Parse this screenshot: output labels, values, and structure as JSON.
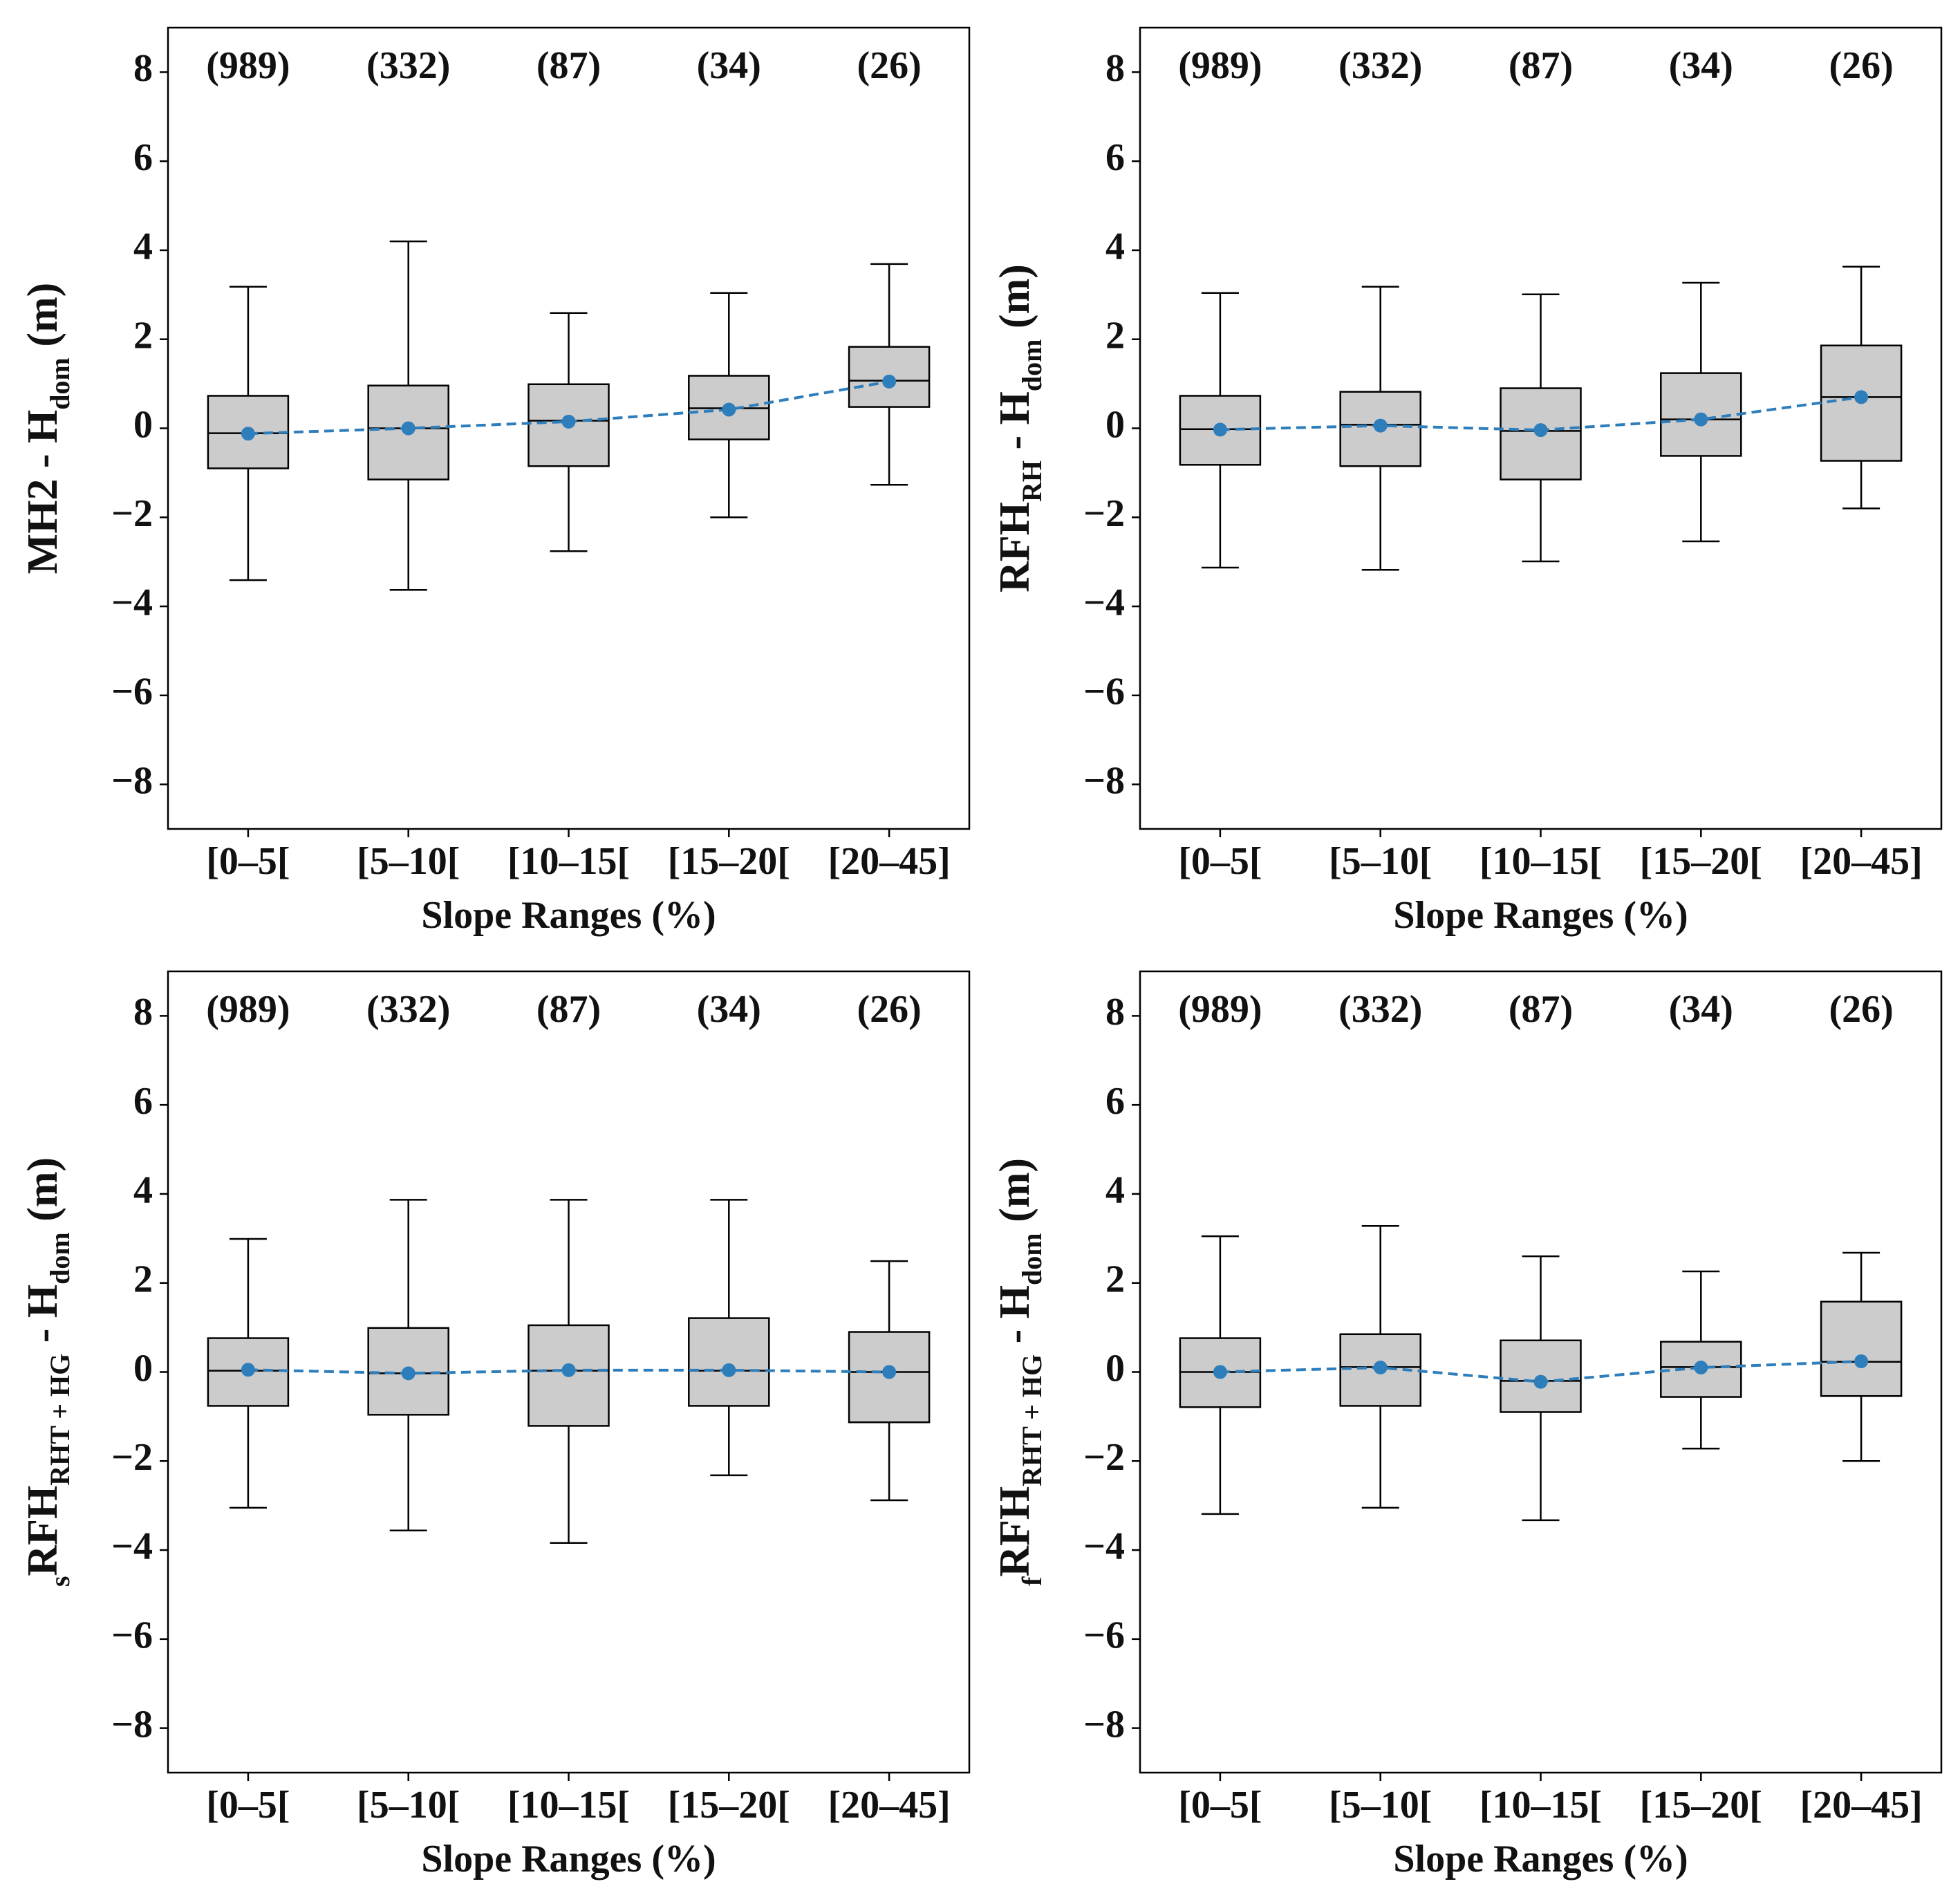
{
  "chart_data": [
    {
      "type": "box",
      "ylabel": [
        {
          "text": "MH2 - H"
        },
        {
          "text": "dom",
          "sub": true
        },
        {
          "text": " (m)"
        }
      ],
      "xlabel": "Slope Ranges (%)",
      "categories": [
        "[0–5[",
        "[5–10[",
        "[10–15[",
        "[15–20[",
        "[20–45]"
      ],
      "counts": [
        "(989)",
        "(332)",
        "(87)",
        "(34)",
        "(26)"
      ],
      "ylim": [
        -9,
        9
      ],
      "yticks": [
        {
          "value": -8,
          "label": "−8"
        },
        {
          "value": -6,
          "label": "−6"
        },
        {
          "value": -4,
          "label": "−4"
        },
        {
          "value": -2,
          "label": "−2"
        },
        0,
        2,
        4,
        6,
        8
      ],
      "box_color": "#cccccc",
      "mean_color": "#2e7ebc",
      "boxes": [
        {
          "whislo": -3.41,
          "q1": -0.9,
          "med": -0.11,
          "q3": 0.73,
          "whishi": 3.18,
          "mean": -0.12
        },
        {
          "whislo": -3.63,
          "q1": -1.15,
          "med": 0,
          "q3": 0.96,
          "whishi": 4.2,
          "mean": 0
        },
        {
          "whislo": -2.76,
          "q1": -0.85,
          "med": 0.17,
          "q3": 0.99,
          "whishi": 2.59,
          "mean": 0.15
        },
        {
          "whislo": -2.0,
          "q1": -0.25,
          "med": 0.45,
          "q3": 1.18,
          "whishi": 3.04,
          "mean": 0.42
        },
        {
          "whislo": -1.27,
          "q1": 0.48,
          "med": 1.07,
          "q3": 1.83,
          "whishi": 3.69,
          "mean": 1.05
        }
      ]
    },
    {
      "type": "box",
      "ylabel": [
        {
          "text": "RFH"
        },
        {
          "text": "RH",
          "sub": true
        },
        {
          "text": " - H"
        },
        {
          "text": "dom",
          "sub": true
        },
        {
          "text": " (m)"
        }
      ],
      "xlabel": "Slope Ranges (%)",
      "categories": [
        "[0–5[",
        "[5–10[",
        "[10–15[",
        "[15–20[",
        "[20–45]"
      ],
      "counts": [
        "(989)",
        "(332)",
        "(87)",
        "(34)",
        "(26)"
      ],
      "ylim": [
        -9,
        9
      ],
      "yticks": [
        {
          "value": -8,
          "label": "−8"
        },
        {
          "value": -6,
          "label": "−6"
        },
        {
          "value": -4,
          "label": "−4"
        },
        {
          "value": -2,
          "label": "−2"
        },
        0,
        2,
        4,
        6,
        8
      ],
      "box_color": "#cccccc",
      "mean_color": "#2e7ebc",
      "boxes": [
        {
          "whislo": -3.13,
          "q1": -0.82,
          "med": -0.02,
          "q3": 0.73,
          "whishi": 3.04,
          "mean": -0.03
        },
        {
          "whislo": -3.18,
          "q1": -0.85,
          "med": 0.08,
          "q3": 0.82,
          "whishi": 3.18,
          "mean": 0.06
        },
        {
          "whislo": -2.99,
          "q1": -1.15,
          "med": -0.06,
          "q3": 0.9,
          "whishi": 3.01,
          "mean": -0.04
        },
        {
          "whislo": -2.54,
          "q1": -0.62,
          "med": 0.2,
          "q3": 1.24,
          "whishi": 3.27,
          "mean": 0.2
        },
        {
          "whislo": -1.8,
          "q1": -0.73,
          "med": 0.7,
          "q3": 1.86,
          "whishi": 3.63,
          "mean": 0.7
        }
      ]
    },
    {
      "type": "box",
      "ylabel": [
        {
          "text": "s",
          "sub": true
        },
        {
          "text": "RFH"
        },
        {
          "text": "RHT + HG",
          "sub": true
        },
        {
          "text": " - H"
        },
        {
          "text": "dom",
          "sub": true
        },
        {
          "text": " (m)"
        }
      ],
      "xlabel": "Slope Ranges (%)",
      "categories": [
        "[0–5[",
        "[5–10[",
        "[10–15[",
        "[15–20[",
        "[20–45]"
      ],
      "counts": [
        "(989)",
        "(332)",
        "(87)",
        "(34)",
        "(26)"
      ],
      "ylim": [
        -9,
        9
      ],
      "yticks": [
        {
          "value": -8,
          "label": "−8"
        },
        {
          "value": -6,
          "label": "−6"
        },
        {
          "value": -4,
          "label": "−4"
        },
        {
          "value": -2,
          "label": "−2"
        },
        0,
        2,
        4,
        6,
        8
      ],
      "box_color": "#cccccc",
      "mean_color": "#2e7ebc",
      "boxes": [
        {
          "whislo": -3.05,
          "q1": -0.76,
          "med": 0.03,
          "q3": 0.76,
          "whishi": 2.99,
          "mean": 0.05
        },
        {
          "whislo": -3.56,
          "q1": -0.96,
          "med": -0.03,
          "q3": 0.99,
          "whishi": 3.87,
          "mean": -0.03
        },
        {
          "whislo": -3.84,
          "q1": -1.21,
          "med": 0.03,
          "q3": 1.05,
          "whishi": 3.87,
          "mean": 0.04
        },
        {
          "whislo": -2.32,
          "q1": -0.76,
          "med": 0.03,
          "q3": 1.21,
          "whishi": 3.87,
          "mean": 0.04
        },
        {
          "whislo": -2.88,
          "q1": -1.13,
          "med": 0,
          "q3": 0.9,
          "whishi": 2.49,
          "mean": 0
        }
      ]
    },
    {
      "type": "box",
      "ylabel": [
        {
          "text": "f",
          "sub": true
        },
        {
          "text": "RFH"
        },
        {
          "text": "RHT + HG",
          "sub": true
        },
        {
          "text": " - H"
        },
        {
          "text": "dom",
          "sub": true
        },
        {
          "text": " (m)"
        }
      ],
      "xlabel": "Slope Ranges (%)",
      "categories": [
        "[0–5[",
        "[5–10[",
        "[10–15[",
        "[15–20[",
        "[20–45]"
      ],
      "counts": [
        "(989)",
        "(332)",
        "(87)",
        "(34)",
        "(26)"
      ],
      "ylim": [
        -9,
        9
      ],
      "yticks": [
        {
          "value": -8,
          "label": "−8"
        },
        {
          "value": -6,
          "label": "−6"
        },
        {
          "value": -4,
          "label": "−4"
        },
        {
          "value": -2,
          "label": "−2"
        },
        0,
        2,
        4,
        6,
        8
      ],
      "box_color": "#cccccc",
      "mean_color": "#2e7ebc",
      "boxes": [
        {
          "whislo": -3.19,
          "q1": -0.79,
          "med": 0,
          "q3": 0.76,
          "whishi": 3.05,
          "mean": 0
        },
        {
          "whislo": -3.05,
          "q1": -0.76,
          "med": 0.11,
          "q3": 0.85,
          "whishi": 3.28,
          "mean": 0.1
        },
        {
          "whislo": -3.33,
          "q1": -0.9,
          "med": -0.2,
          "q3": 0.71,
          "whishi": 2.6,
          "mean": -0.22
        },
        {
          "whislo": -1.72,
          "q1": -0.56,
          "med": 0.11,
          "q3": 0.68,
          "whishi": 2.26,
          "mean": 0.1
        },
        {
          "whislo": -2.0,
          "q1": -0.54,
          "med": 0.23,
          "q3": 1.58,
          "whishi": 2.68,
          "mean": 0.24
        }
      ]
    }
  ]
}
